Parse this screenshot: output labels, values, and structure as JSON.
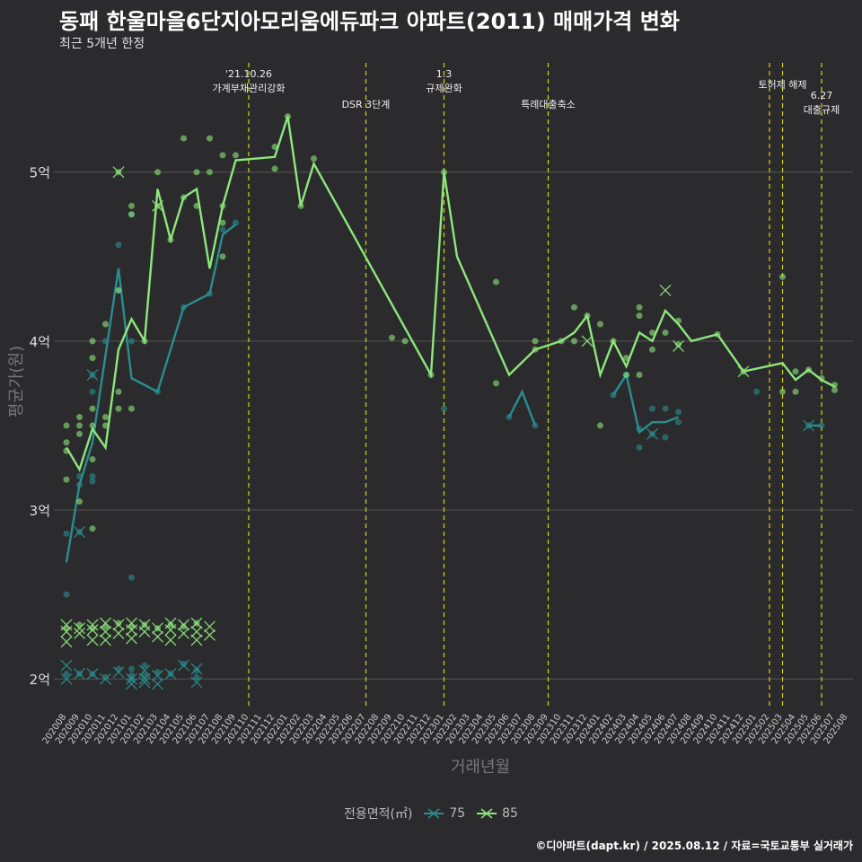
{
  "title": "동패 한울마을6단지아모리움에듀파크 아파트(2011) 매매가격 변화",
  "subtitle": "최근 5개년 한정",
  "caption": "©디아파트(dapt.kr) / 2025.08.12 / 자료=국토교통부 실거래가",
  "legend": {
    "title": "전용면적(㎡)",
    "items": [
      {
        "label": "75",
        "color": "#2a8d8f"
      },
      {
        "label": "85",
        "color": "#8ee67c"
      }
    ]
  },
  "chart_data": {
    "type": "line",
    "xlabel": "거래년월",
    "ylabel": "평균가(원)",
    "y_tick_labels": [
      "2억",
      "3억",
      "4억",
      "5억"
    ],
    "y_ticks": [
      20000,
      30000,
      40000,
      50000
    ],
    "ylim": [
      18200,
      57000
    ],
    "x_categories": [
      "202008",
      "202009",
      "202010",
      "202011",
      "202012",
      "202101",
      "202102",
      "202103",
      "202104",
      "202105",
      "202106",
      "202107",
      "202108",
      "202109",
      "202110",
      "202111",
      "202112",
      "202201",
      "202202",
      "202203",
      "202204",
      "202205",
      "202206",
      "202207",
      "202208",
      "202209",
      "202210",
      "202211",
      "202212",
      "202301",
      "202302",
      "202303",
      "202304",
      "202305",
      "202306",
      "202307",
      "202308",
      "202309",
      "202310",
      "202311",
      "202312",
      "202401",
      "202402",
      "202403",
      "202404",
      "202405",
      "202406",
      "202407",
      "202408",
      "202409",
      "202410",
      "202411",
      "202412",
      "202501",
      "202502",
      "202503",
      "202504",
      "202505",
      "202506",
      "202507",
      "202508"
    ],
    "vlines": [
      {
        "x": 14.0,
        "label": "'21.10.26\n가계부채관리강화"
      },
      {
        "x": 23.0,
        "label": "DSR 3단계"
      },
      {
        "x": 29.0,
        "label": "1.3\n규제완화"
      },
      {
        "x": 37.0,
        "label": "특례대출축소"
      },
      {
        "x": 54.0,
        "label": ""
      },
      {
        "x": 55.0,
        "label": "토허제 해제"
      },
      {
        "x": 58.0,
        "label": "6.27\n대출규제"
      }
    ],
    "series": [
      {
        "name": "75",
        "color": "#2a8d8f",
        "line": [
          [
            0,
            26900
          ],
          [
            1,
            31500
          ],
          [
            2,
            34000
          ],
          [
            4,
            44300
          ],
          [
            5,
            37800
          ],
          [
            7,
            37000
          ],
          [
            9,
            42000
          ],
          [
            11,
            42800
          ],
          [
            12,
            46300
          ],
          [
            13,
            46900
          ]
        ],
        "line2": [
          [
            34,
            35500
          ],
          [
            35,
            37000
          ],
          [
            36,
            35000
          ]
        ],
        "line3": [
          [
            42,
            36800
          ],
          [
            43,
            38000
          ],
          [
            44,
            34600
          ],
          [
            45,
            35200
          ],
          [
            46,
            35200
          ],
          [
            47,
            35500
          ]
        ],
        "line4": [
          [
            57,
            35000
          ],
          [
            58,
            35000
          ]
        ],
        "points": [
          [
            0,
            25000
          ],
          [
            0,
            28600
          ],
          [
            1,
            28700
          ],
          [
            1,
            31500
          ],
          [
            1,
            32000
          ],
          [
            2,
            31700
          ],
          [
            2,
            32000
          ],
          [
            2,
            37000
          ],
          [
            2,
            38000
          ],
          [
            3,
            40000
          ],
          [
            4,
            43000
          ],
          [
            4,
            45700
          ],
          [
            5,
            47500
          ],
          [
            5,
            26000
          ],
          [
            5,
            40000
          ],
          [
            7,
            37000
          ],
          [
            9,
            42000
          ],
          [
            11,
            42800
          ],
          [
            12,
            46600
          ],
          [
            13,
            47000
          ],
          [
            29,
            36000
          ],
          [
            34,
            35500
          ],
          [
            36,
            35000
          ],
          [
            42,
            36800
          ],
          [
            43,
            38000
          ],
          [
            44,
            33700
          ],
          [
            44,
            34800
          ],
          [
            45,
            34500
          ],
          [
            45,
            36000
          ],
          [
            46,
            36000
          ],
          [
            46,
            34300
          ],
          [
            47,
            35200
          ],
          [
            47,
            35800
          ],
          [
            53,
            37000
          ],
          [
            57,
            35000
          ],
          [
            58,
            35000
          ]
        ],
        "crosses": [
          [
            1,
            28700
          ],
          [
            2,
            38000
          ],
          [
            45,
            34500
          ],
          [
            57,
            35000
          ]
        ],
        "low_points": [
          [
            0,
            20300
          ],
          [
            1,
            20300
          ],
          [
            2,
            20300
          ],
          [
            3,
            20100
          ],
          [
            4,
            20600
          ],
          [
            5,
            20200
          ],
          [
            5,
            20600
          ],
          [
            5,
            20000
          ],
          [
            6,
            20800
          ],
          [
            6,
            20200
          ],
          [
            7,
            20400
          ],
          [
            8,
            20300
          ],
          [
            9,
            20900
          ],
          [
            10,
            20500
          ],
          [
            10,
            20100
          ]
        ],
        "low_crosses": [
          [
            0,
            20800
          ],
          [
            0,
            20000
          ],
          [
            1,
            20300
          ],
          [
            2,
            20300
          ],
          [
            3,
            20000
          ],
          [
            4,
            20400
          ],
          [
            5,
            20000
          ],
          [
            5,
            19700
          ],
          [
            6,
            20000
          ],
          [
            6,
            20500
          ],
          [
            6,
            19800
          ],
          [
            7,
            20200
          ],
          [
            7,
            19700
          ],
          [
            8,
            20300
          ],
          [
            9,
            20800
          ],
          [
            10,
            20600
          ],
          [
            10,
            19800
          ]
        ]
      },
      {
        "name": "85",
        "color": "#8ee67c",
        "line": [
          [
            0,
            33700
          ],
          [
            1,
            32400
          ],
          [
            2,
            34800
          ],
          [
            3,
            33700
          ],
          [
            4,
            39500
          ],
          [
            5,
            41300
          ],
          [
            6,
            40000
          ],
          [
            7,
            49000
          ],
          [
            8,
            46000
          ],
          [
            9,
            48500
          ],
          [
            10,
            49000
          ],
          [
            11,
            44300
          ],
          [
            12,
            48000
          ],
          [
            13,
            50700
          ],
          [
            16,
            50900
          ],
          [
            17,
            53300
          ],
          [
            18,
            48000
          ],
          [
            19,
            50500
          ],
          [
            28,
            38000
          ],
          [
            29,
            50000
          ],
          [
            30,
            45000
          ],
          [
            34,
            38000
          ],
          [
            36,
            39500
          ],
          [
            38,
            40000
          ],
          [
            39,
            40500
          ],
          [
            40,
            41500
          ],
          [
            41,
            38000
          ],
          [
            42,
            40000
          ],
          [
            43,
            38500
          ],
          [
            44,
            40500
          ],
          [
            45,
            40000
          ],
          [
            46,
            41800
          ],
          [
            47,
            41000
          ],
          [
            48,
            40000
          ],
          [
            50,
            40400
          ],
          [
            52,
            38200
          ],
          [
            55,
            38700
          ],
          [
            56,
            37700
          ],
          [
            57,
            38300
          ],
          [
            58,
            37700
          ],
          [
            59,
            37300
          ]
        ],
        "points": [
          [
            0,
            33500
          ],
          [
            0,
            34000
          ],
          [
            0,
            35000
          ],
          [
            0,
            31800
          ],
          [
            1,
            35000
          ],
          [
            1,
            35500
          ],
          [
            1,
            34500
          ],
          [
            1,
            30500
          ],
          [
            2,
            33000
          ],
          [
            2,
            35000
          ],
          [
            2,
            36000
          ],
          [
            2,
            40000
          ],
          [
            2,
            39000
          ],
          [
            2,
            28900
          ],
          [
            3,
            35500
          ],
          [
            3,
            35000
          ],
          [
            3,
            41000
          ],
          [
            4,
            36000
          ],
          [
            4,
            37000
          ],
          [
            4,
            43000
          ],
          [
            4,
            50000
          ],
          [
            5,
            48000
          ],
          [
            5,
            47500
          ],
          [
            5,
            36000
          ],
          [
            6,
            40000
          ],
          [
            7,
            50000
          ],
          [
            7,
            48000
          ],
          [
            8,
            46000
          ],
          [
            9,
            52000
          ],
          [
            9,
            48500
          ],
          [
            10,
            50000
          ],
          [
            10,
            48000
          ],
          [
            11,
            52000
          ],
          [
            11,
            50000
          ],
          [
            12,
            48000
          ],
          [
            12,
            45000
          ],
          [
            12,
            47000
          ],
          [
            12,
            51000
          ],
          [
            13,
            51000
          ],
          [
            16,
            51500
          ],
          [
            16,
            50200
          ],
          [
            17,
            53300
          ],
          [
            18,
            48000
          ],
          [
            19,
            50800
          ],
          [
            25,
            40200
          ],
          [
            26,
            40000
          ],
          [
            28,
            38000
          ],
          [
            29,
            50000
          ],
          [
            33,
            43500
          ],
          [
            33,
            37500
          ],
          [
            36,
            39500
          ],
          [
            36,
            40000
          ],
          [
            38,
            40000
          ],
          [
            39,
            42000
          ],
          [
            39,
            40000
          ],
          [
            40,
            41500
          ],
          [
            41,
            41000
          ],
          [
            41,
            35000
          ],
          [
            42,
            40000
          ],
          [
            43,
            39000
          ],
          [
            43,
            38000
          ],
          [
            44,
            42000
          ],
          [
            44,
            41500
          ],
          [
            44,
            38000
          ],
          [
            45,
            40500
          ],
          [
            45,
            39500
          ],
          [
            46,
            40500
          ],
          [
            47,
            41200
          ],
          [
            47,
            39800
          ],
          [
            50,
            40400
          ],
          [
            52,
            38200
          ],
          [
            55,
            43800
          ],
          [
            55,
            37000
          ],
          [
            56,
            38200
          ],
          [
            56,
            37000
          ],
          [
            57,
            38300
          ],
          [
            58,
            37800
          ],
          [
            59,
            37400
          ],
          [
            59,
            37100
          ]
        ],
        "crosses": [
          [
            7,
            48000
          ],
          [
            4,
            50000
          ],
          [
            40,
            40000
          ],
          [
            46,
            43000
          ],
          [
            47,
            39700
          ],
          [
            52,
            38200
          ]
        ],
        "low_points": [
          [
            0,
            23000
          ],
          [
            1,
            23200
          ],
          [
            2,
            23000
          ],
          [
            3,
            23100
          ],
          [
            4,
            23300
          ],
          [
            5,
            23100
          ],
          [
            6,
            23200
          ],
          [
            7,
            23000
          ],
          [
            8,
            23200
          ],
          [
            9,
            23100
          ],
          [
            10,
            23300
          ]
        ],
        "low_crosses": [
          [
            0,
            23200
          ],
          [
            0,
            22800
          ],
          [
            0,
            22200
          ],
          [
            1,
            23000
          ],
          [
            1,
            22700
          ],
          [
            2,
            23200
          ],
          [
            2,
            22900
          ],
          [
            2,
            22300
          ],
          [
            3,
            23300
          ],
          [
            3,
            22800
          ],
          [
            3,
            22300
          ],
          [
            4,
            23200
          ],
          [
            4,
            22700
          ],
          [
            5,
            23300
          ],
          [
            5,
            22900
          ],
          [
            5,
            22400
          ],
          [
            6,
            23200
          ],
          [
            6,
            22800
          ],
          [
            7,
            23000
          ],
          [
            7,
            22500
          ],
          [
            8,
            23300
          ],
          [
            8,
            22900
          ],
          [
            8,
            22300
          ],
          [
            9,
            23200
          ],
          [
            9,
            22700
          ],
          [
            10,
            23300
          ],
          [
            10,
            22800
          ],
          [
            10,
            22300
          ],
          [
            11,
            23100
          ],
          [
            11,
            22600
          ]
        ]
      }
    ]
  }
}
